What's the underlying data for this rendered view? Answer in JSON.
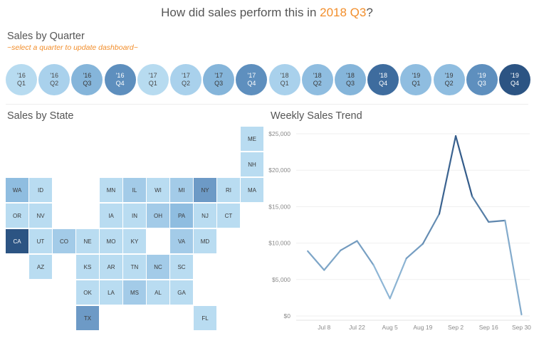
{
  "title": {
    "prefix": "How did sales perform this in ",
    "highlight": "2018 Q3",
    "suffix": "?"
  },
  "quarter_section": {
    "heading": "Sales by Quarter",
    "subtitle": "~select a quarter to update dashboard~"
  },
  "quarters": [
    {
      "year": "'16",
      "q": "Q1",
      "color": "#b7dbf0",
      "text": "#4a4a4a"
    },
    {
      "year": "'16",
      "q": "Q2",
      "color": "#a9d1ec",
      "text": "#4a4a4a"
    },
    {
      "year": "'16",
      "q": "Q3",
      "color": "#85b5da",
      "text": "#3a3a3a"
    },
    {
      "year": "'16",
      "q": "Q4",
      "color": "#5e8fbe",
      "text": "#ffffff"
    },
    {
      "year": "'17",
      "q": "Q1",
      "color": "#b7dbf0",
      "text": "#4a4a4a"
    },
    {
      "year": "'17",
      "q": "Q2",
      "color": "#a9d1ec",
      "text": "#4a4a4a"
    },
    {
      "year": "'17",
      "q": "Q3",
      "color": "#85b5da",
      "text": "#3a3a3a"
    },
    {
      "year": "'17",
      "q": "Q4",
      "color": "#5e8fbe",
      "text": "#ffffff"
    },
    {
      "year": "'18",
      "q": "Q1",
      "color": "#a9d1ec",
      "text": "#4a4a4a"
    },
    {
      "year": "'18",
      "q": "Q2",
      "color": "#8fbde0",
      "text": "#3a3a3a"
    },
    {
      "year": "'18",
      "q": "Q3",
      "color": "#85b5da",
      "text": "#3a3a3a"
    },
    {
      "year": "'18",
      "q": "Q4",
      "color": "#3e6c9e",
      "text": "#ffffff"
    },
    {
      "year": "'19",
      "q": "Q1",
      "color": "#8fbde0",
      "text": "#3a3a3a"
    },
    {
      "year": "'19",
      "q": "Q2",
      "color": "#8fbde0",
      "text": "#3a3a3a"
    },
    {
      "year": "'19",
      "q": "Q3",
      "color": "#5e8fbe",
      "text": "#ffffff"
    },
    {
      "year": "'19",
      "q": "Q4",
      "color": "#2c5483",
      "text": "#ffffff"
    }
  ],
  "state_section": {
    "heading": "Sales by State"
  },
  "states": [
    {
      "abbr": "ME",
      "row": 0,
      "col": 10,
      "color": "#b9dcf1"
    },
    {
      "abbr": "NH",
      "row": 1,
      "col": 10,
      "color": "#b9dcf1"
    },
    {
      "abbr": "WA",
      "row": 2,
      "col": 0,
      "color": "#8fbde0"
    },
    {
      "abbr": "ID",
      "row": 2,
      "col": 1,
      "color": "#b9dcf1"
    },
    {
      "abbr": "MN",
      "row": 2,
      "col": 4,
      "color": "#b9dcf1"
    },
    {
      "abbr": "IL",
      "row": 2,
      "col": 5,
      "color": "#a3cbe8"
    },
    {
      "abbr": "WI",
      "row": 2,
      "col": 6,
      "color": "#b9dcf1"
    },
    {
      "abbr": "MI",
      "row": 2,
      "col": 7,
      "color": "#a3cbe8"
    },
    {
      "abbr": "NY",
      "row": 2,
      "col": 8,
      "color": "#6d9ac6"
    },
    {
      "abbr": "RI",
      "row": 2,
      "col": 9,
      "color": "#b9dcf1"
    },
    {
      "abbr": "MA",
      "row": 2,
      "col": 10,
      "color": "#b9dcf1"
    },
    {
      "abbr": "OR",
      "row": 3,
      "col": 0,
      "color": "#b9dcf1"
    },
    {
      "abbr": "NV",
      "row": 3,
      "col": 1,
      "color": "#b9dcf1"
    },
    {
      "abbr": "IA",
      "row": 3,
      "col": 4,
      "color": "#b9dcf1"
    },
    {
      "abbr": "IN",
      "row": 3,
      "col": 5,
      "color": "#b9dcf1"
    },
    {
      "abbr": "OH",
      "row": 3,
      "col": 6,
      "color": "#a3cbe8"
    },
    {
      "abbr": "PA",
      "row": 3,
      "col": 7,
      "color": "#8fbde0"
    },
    {
      "abbr": "NJ",
      "row": 3,
      "col": 8,
      "color": "#b9dcf1"
    },
    {
      "abbr": "CT",
      "row": 3,
      "col": 9,
      "color": "#b9dcf1"
    },
    {
      "abbr": "CA",
      "row": 4,
      "col": 0,
      "color": "#2c5483",
      "text": "#ffffff"
    },
    {
      "abbr": "UT",
      "row": 4,
      "col": 1,
      "color": "#b9dcf1"
    },
    {
      "abbr": "CO",
      "row": 4,
      "col": 2,
      "color": "#a3cbe8"
    },
    {
      "abbr": "NE",
      "row": 4,
      "col": 3,
      "color": "#b9dcf1"
    },
    {
      "abbr": "MO",
      "row": 4,
      "col": 4,
      "color": "#b9dcf1"
    },
    {
      "abbr": "KY",
      "row": 4,
      "col": 5,
      "color": "#b9dcf1"
    },
    {
      "abbr": "VA",
      "row": 4,
      "col": 7,
      "color": "#a3cbe8"
    },
    {
      "abbr": "MD",
      "row": 4,
      "col": 8,
      "color": "#b9dcf1"
    },
    {
      "abbr": "AZ",
      "row": 5,
      "col": 1,
      "color": "#b9dcf1"
    },
    {
      "abbr": "KS",
      "row": 5,
      "col": 3,
      "color": "#b9dcf1"
    },
    {
      "abbr": "AR",
      "row": 5,
      "col": 4,
      "color": "#b9dcf1"
    },
    {
      "abbr": "TN",
      "row": 5,
      "col": 5,
      "color": "#b9dcf1"
    },
    {
      "abbr": "NC",
      "row": 5,
      "col": 6,
      "color": "#a3cbe8"
    },
    {
      "abbr": "SC",
      "row": 5,
      "col": 7,
      "color": "#b9dcf1"
    },
    {
      "abbr": "OK",
      "row": 6,
      "col": 3,
      "color": "#b9dcf1"
    },
    {
      "abbr": "LA",
      "row": 6,
      "col": 4,
      "color": "#b9dcf1"
    },
    {
      "abbr": "MS",
      "row": 6,
      "col": 5,
      "color": "#a3cbe8"
    },
    {
      "abbr": "AL",
      "row": 6,
      "col": 6,
      "color": "#b9dcf1"
    },
    {
      "abbr": "GA",
      "row": 6,
      "col": 7,
      "color": "#b9dcf1"
    },
    {
      "abbr": "TX",
      "row": 7,
      "col": 3,
      "color": "#6d9ac6"
    },
    {
      "abbr": "FL",
      "row": 7,
      "col": 8,
      "color": "#b9dcf1"
    }
  ],
  "chart_data": {
    "type": "line",
    "title": "Weekly Sales Trend",
    "xlabel": "",
    "ylabel": "",
    "ylim": [
      0,
      25000
    ],
    "yticks": [
      0,
      5000,
      10000,
      15000,
      20000,
      25000
    ],
    "ytick_labels": [
      "$0",
      "$5,000",
      "$10,000",
      "$15,000",
      "$20,000",
      "$25,000"
    ],
    "xtick_labels": [
      "Jul 8",
      "Jul 22",
      "Aug 5",
      "Aug 19",
      "Sep 2",
      "Sep 16",
      "Sep 30"
    ],
    "xtick_positions": [
      1,
      3,
      5,
      7,
      9,
      11,
      13
    ],
    "x_range": [
      -0.7,
      13.5
    ],
    "series": [
      {
        "name": "Weekly Sales",
        "x": [
          0,
          1,
          2,
          3,
          4,
          5,
          6,
          7,
          8,
          9,
          10,
          11,
          12,
          13
        ],
        "values": [
          8900,
          6300,
          9000,
          10300,
          7000,
          2400,
          7900,
          9900,
          14000,
          24700,
          16400,
          12900,
          13100,
          200
        ]
      }
    ],
    "colors": {
      "low": "#a9d1ec",
      "high": "#2c5483"
    }
  }
}
